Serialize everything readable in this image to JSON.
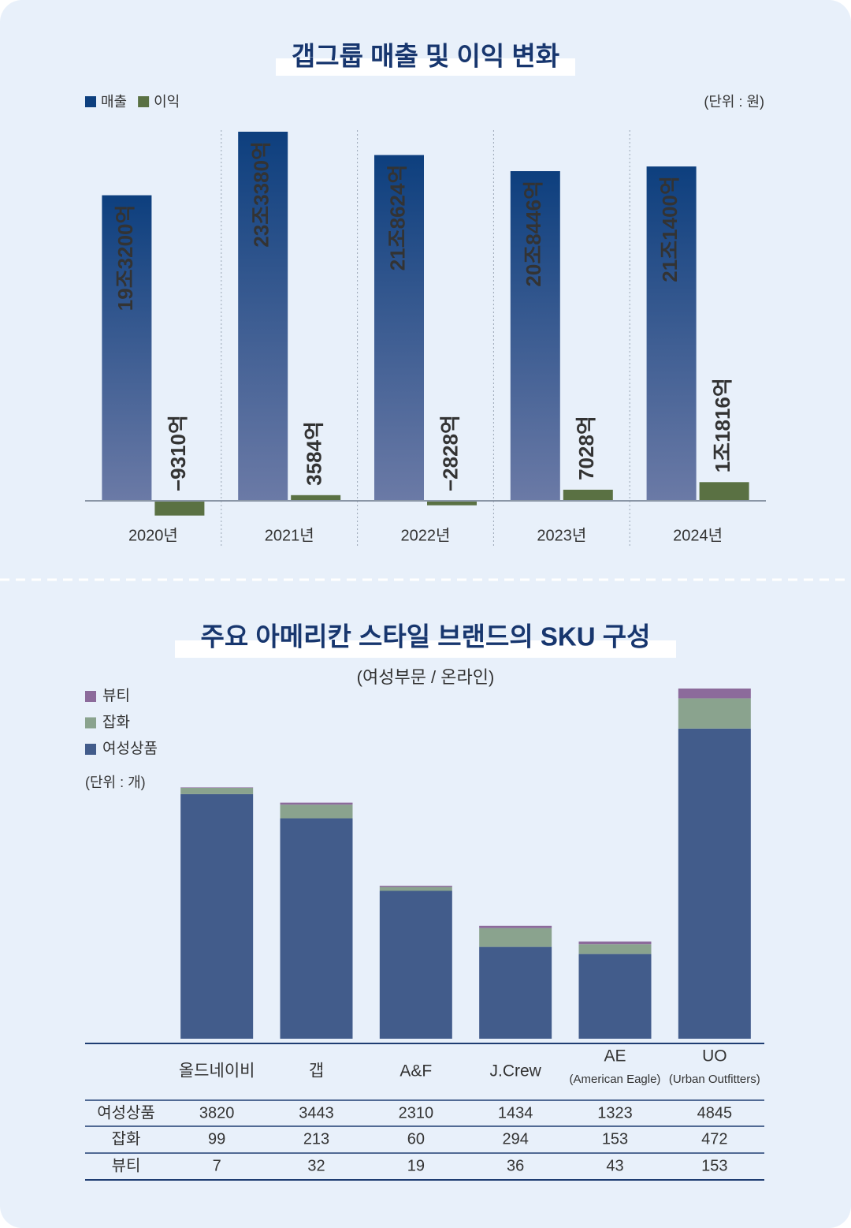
{
  "chart_data": [
    {
      "type": "grouped_bar",
      "title": "갭그룹 매출 및 이익 변화",
      "unit_label": "(단위 : 원)",
      "categories": [
        "2020년",
        "2021년",
        "2022년",
        "2023년",
        "2024년"
      ],
      "series": [
        {
          "name": "매출",
          "color": "#0d3f7e",
          "color_bottom": "#6b7aa6",
          "values": [
            193200,
            233380,
            218624,
            208446,
            211400
          ],
          "value_labels": [
            "19조3200억",
            "23조3380억",
            "21조8624억",
            "20조8446억",
            "21조1400억"
          ]
        },
        {
          "name": "이익",
          "color": "#5a7143",
          "values": [
            -9310,
            3584,
            -2828,
            7028,
            11816
          ],
          "value_labels": [
            "−9310억",
            "3584억",
            "−2828억",
            "7028억",
            "1조1816억"
          ]
        }
      ],
      "label_colors": {
        "positive": "#5e7d3e",
        "negative": "#a5443e"
      }
    },
    {
      "type": "stacked_bar",
      "title": "주요 아메리칸 스타일 브랜드의 SKU 구성",
      "subtitle": "(여성부문 / 온라인)",
      "unit_label": "(단위 : 개)",
      "categories": [
        "올드네이비",
        "갭",
        "A&F",
        "J.Crew",
        "AE",
        "UO"
      ],
      "category_notes": [
        null,
        null,
        null,
        null,
        "(American Eagle)",
        "(Urban Outfitters)"
      ],
      "series": [
        {
          "name": "여성상품",
          "color": "#425c8b",
          "values": [
            3820,
            3443,
            2310,
            1434,
            1323,
            4845
          ]
        },
        {
          "name": "잡화",
          "color": "#8aa38e",
          "values": [
            99,
            213,
            60,
            294,
            153,
            472
          ]
        },
        {
          "name": "뷰티",
          "color": "#8c6b9b",
          "values": [
            7,
            32,
            19,
            36,
            43,
            153
          ]
        }
      ]
    }
  ]
}
